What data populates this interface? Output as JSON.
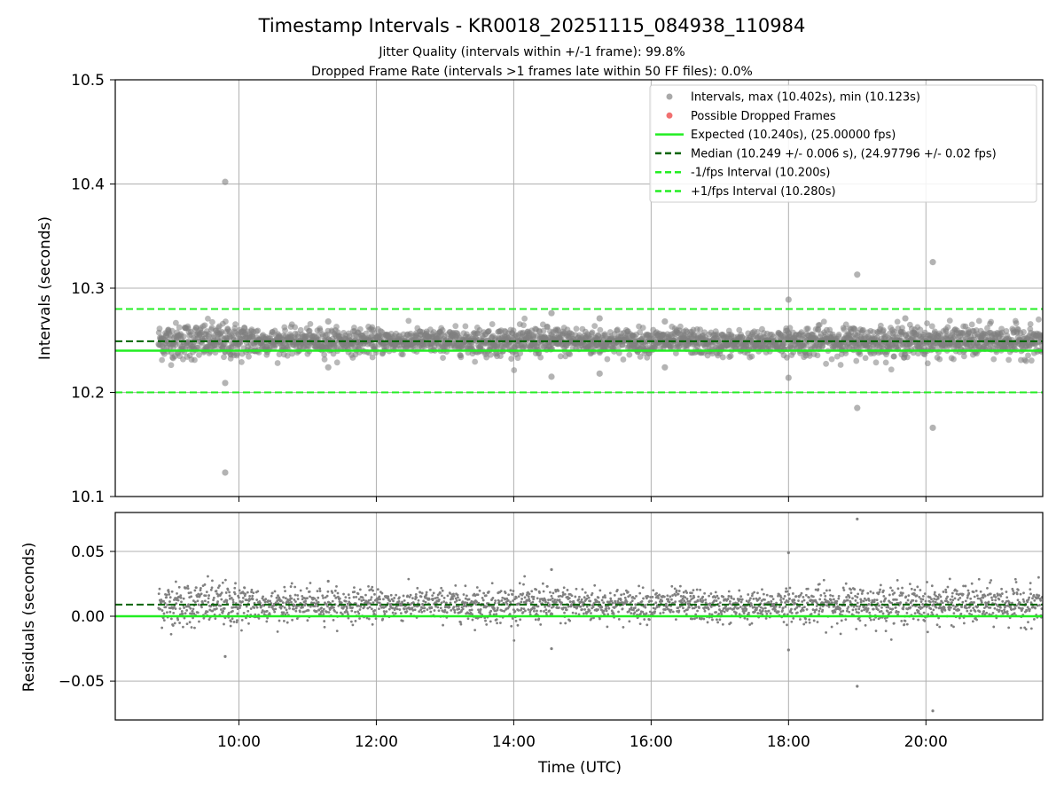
{
  "chart_data": {
    "title": "Timestamp Intervals - KR0018_20251115_084938_110984",
    "subtitles": [
      "Jitter Quality (intervals within +/-1 frame): 99.8%",
      "Dropped Frame Rate (intervals >1 frames late within 50 FF files): 0.0%"
    ],
    "colors": {
      "points": "#808080",
      "dropped": "#f06060",
      "expected": "#22ee22",
      "median": "#006400",
      "bounds": "#22ee22",
      "grid": "#b0b0b0",
      "axis": "#000000"
    },
    "xaxis": {
      "label": "Time (UTC)",
      "range_hours": [
        8.2,
        21.7
      ],
      "ticks": [
        10,
        12,
        14,
        16,
        18,
        20
      ],
      "tick_labels": [
        "10:00",
        "12:00",
        "14:00",
        "16:00",
        "18:00",
        "20:00"
      ]
    },
    "top": {
      "type": "scatter",
      "ylabel": "Intervals (seconds)",
      "ylim": [
        10.1,
        10.5
      ],
      "yticks": [
        10.1,
        10.2,
        10.3,
        10.4,
        10.5
      ],
      "ytick_labels": [
        "10.1",
        "10.2",
        "10.3",
        "10.4",
        "10.5"
      ],
      "expected": 10.24,
      "median": 10.249,
      "lower_bound": 10.2,
      "upper_bound": 10.28,
      "max_interval": 10.402,
      "min_interval": 10.123,
      "data_start_hour": 8.83,
      "data_end_hour": 21.7,
      "noise_std": 0.006,
      "outliers": [
        {
          "t": 9.8,
          "v": 10.402
        },
        {
          "t": 9.8,
          "v": 10.123
        },
        {
          "t": 9.8,
          "v": 10.209
        },
        {
          "t": 18.0,
          "v": 10.289
        },
        {
          "t": 18.0,
          "v": 10.214
        },
        {
          "t": 19.0,
          "v": 10.313
        },
        {
          "t": 19.0,
          "v": 10.185
        },
        {
          "t": 20.1,
          "v": 10.325
        },
        {
          "t": 20.1,
          "v": 10.166
        },
        {
          "t": 14.55,
          "v": 10.276
        },
        {
          "t": 14.55,
          "v": 10.215
        },
        {
          "t": 15.25,
          "v": 10.271
        },
        {
          "t": 15.25,
          "v": 10.218
        },
        {
          "t": 11.3,
          "v": 10.268
        },
        {
          "t": 11.3,
          "v": 10.224
        },
        {
          "t": 19.7,
          "v": 10.271
        },
        {
          "t": 16.2,
          "v": 10.268
        },
        {
          "t": 16.2,
          "v": 10.224
        }
      ]
    },
    "bottom": {
      "type": "scatter",
      "ylabel": "Residuals (seconds)",
      "ylim": [
        -0.08,
        0.08
      ],
      "yticks": [
        -0.05,
        0.0,
        0.05
      ],
      "ytick_labels": [
        "−0.05",
        "0.00",
        "0.05"
      ],
      "expected_residual": 0.0,
      "median_residual": 0.009,
      "outliers": [
        {
          "t": 9.8,
          "v": -0.031
        },
        {
          "t": 18.0,
          "v": 0.049
        },
        {
          "t": 19.0,
          "v": 0.075
        },
        {
          "t": 19.0,
          "v": -0.054
        },
        {
          "t": 20.1,
          "v": -0.073
        },
        {
          "t": 14.55,
          "v": 0.036
        },
        {
          "t": 14.55,
          "v": -0.025
        },
        {
          "t": 18.0,
          "v": -0.026
        },
        {
          "t": 11.3,
          "v": 0.027
        }
      ]
    },
    "legend": {
      "position": "upper-right",
      "entries": [
        {
          "label": "Intervals, max (10.402s), min (10.123s)",
          "kind": "marker",
          "color": "#a0a0a0"
        },
        {
          "label": "Possible Dropped Frames",
          "kind": "marker",
          "color": "#f06060"
        },
        {
          "label": "Expected (10.240s), (25.00000 fps)",
          "kind": "solid",
          "color": "#22ee22"
        },
        {
          "label": "Median (10.249 +/- 0.006 s), (24.97796 +/- 0.02 fps)",
          "kind": "dashed",
          "color": "#006400"
        },
        {
          "label": "-1/fps Interval (10.200s)",
          "kind": "dashed",
          "color": "#22ee22"
        },
        {
          "label": "+1/fps Interval (10.280s)",
          "kind": "dashed",
          "color": "#22ee22"
        }
      ]
    }
  }
}
